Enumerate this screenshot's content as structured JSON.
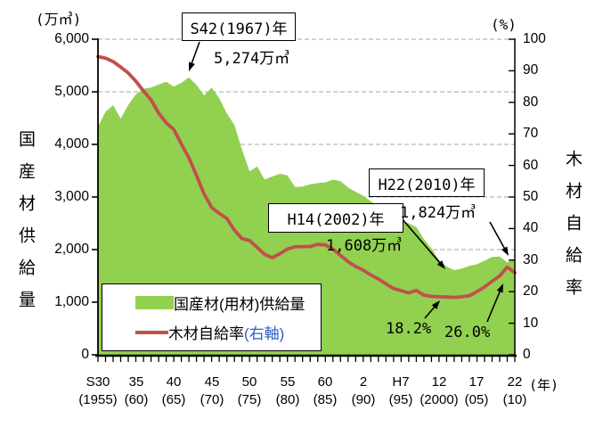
{
  "colors": {
    "area": "#92D050",
    "line": "#C0504D",
    "grid": "#A6A6A6",
    "axis": "#000000",
    "legend_suffix_blue": "#2E5FC0"
  },
  "legend": {
    "area_label": "国産材(用材)供給量",
    "line_label": "木材自給率",
    "line_label_suffix": "(右軸)"
  },
  "annotations": {
    "peak": {
      "box_label": "S42(1967)年",
      "value_label": "5,274万㎥"
    },
    "low": {
      "box_label": "H14(2002)年",
      "value_label": "1,608万㎥"
    },
    "latest": {
      "box_label": "H22(2010)年",
      "value_label": "1,824万㎥"
    },
    "rate_low_label": "18.2%",
    "rate_latest_label": "26.0%"
  },
  "chart_data": {
    "type": "area+line",
    "x_years": [
      1955,
      1956,
      1957,
      1958,
      1959,
      1960,
      1961,
      1962,
      1963,
      1964,
      1965,
      1966,
      1967,
      1968,
      1969,
      1970,
      1971,
      1972,
      1973,
      1974,
      1975,
      1976,
      1977,
      1978,
      1979,
      1980,
      1981,
      1982,
      1983,
      1984,
      1985,
      1986,
      1987,
      1988,
      1989,
      1990,
      1991,
      1992,
      1993,
      1994,
      1995,
      1996,
      1997,
      1998,
      1999,
      2000,
      2001,
      2002,
      2003,
      2004,
      2005,
      2006,
      2007,
      2008,
      2009,
      2010
    ],
    "series": [
      {
        "name": "国産材(用材)供給量",
        "type": "area",
        "axis": "left",
        "unit": "万㎥",
        "values": [
          4340,
          4620,
          4745,
          4490,
          4750,
          4950,
          5060,
          5080,
          5140,
          5190,
          5100,
          5170,
          5274,
          5130,
          4930,
          5080,
          4880,
          4590,
          4370,
          3900,
          3490,
          3580,
          3330,
          3390,
          3440,
          3410,
          3190,
          3200,
          3240,
          3265,
          3280,
          3330,
          3300,
          3180,
          3100,
          3020,
          2920,
          2820,
          2730,
          2640,
          2540,
          2500,
          2430,
          2200,
          2020,
          1800,
          1680,
          1608,
          1640,
          1690,
          1720,
          1790,
          1860,
          1870,
          1760,
          1824
        ]
      },
      {
        "name": "木材自給率(右軸)",
        "type": "line",
        "axis": "right",
        "unit": "%",
        "values": [
          94.5,
          94.0,
          92.9,
          91.2,
          89.3,
          86.7,
          83.6,
          80.8,
          76.6,
          73.5,
          71.4,
          66.8,
          62.4,
          56.8,
          51.0,
          46.7,
          44.8,
          43.2,
          39.5,
          36.8,
          36.2,
          34.0,
          31.8,
          30.8,
          32.0,
          33.5,
          34.2,
          34.3,
          34.3,
          35.0,
          34.8,
          33.5,
          31.5,
          29.5,
          28.0,
          26.8,
          25.3,
          24.0,
          22.5,
          21.0,
          20.3,
          19.6,
          20.4,
          18.9,
          18.5,
          18.4,
          18.3,
          18.2,
          18.4,
          18.7,
          20.0,
          21.5,
          23.3,
          25.0,
          27.8,
          26.0
        ]
      }
    ],
    "left_axis": {
      "title": "国産材供給量",
      "unit": "(万㎥)",
      "min": 0,
      "max": 6000,
      "tick_step": 1000,
      "tick_labels": [
        "0",
        "1,000",
        "2,000",
        "3,000",
        "4,000",
        "5,000",
        "6,000"
      ]
    },
    "right_axis": {
      "title": "木材自給率",
      "unit": "(%)",
      "min": 0,
      "max": 100,
      "tick_step": 10,
      "tick_labels": [
        "0",
        "10",
        "20",
        "30",
        "40",
        "50",
        "60",
        "70",
        "80",
        "90",
        "100"
      ]
    },
    "x_axis": {
      "unit": "(年)",
      "tick_labels": [
        {
          "era": "S30",
          "west": "(1955)"
        },
        {
          "era": "35",
          "west": "(60)"
        },
        {
          "era": "40",
          "west": "(65)"
        },
        {
          "era": "45",
          "west": "(70)"
        },
        {
          "era": "50",
          "west": "(75)"
        },
        {
          "era": "55",
          "west": "(80)"
        },
        {
          "era": "60",
          "west": "(85)"
        },
        {
          "era": "2",
          "west": "(90)"
        },
        {
          "era": "H7",
          "west": "(95)"
        },
        {
          "era": "12",
          "west": "(2000)"
        },
        {
          "era": "17",
          "west": "(05)"
        },
        {
          "era": "22",
          "west": "(10)"
        }
      ]
    },
    "grid": "horizontal-dashed",
    "legend_position": "bottom-left-inside"
  }
}
